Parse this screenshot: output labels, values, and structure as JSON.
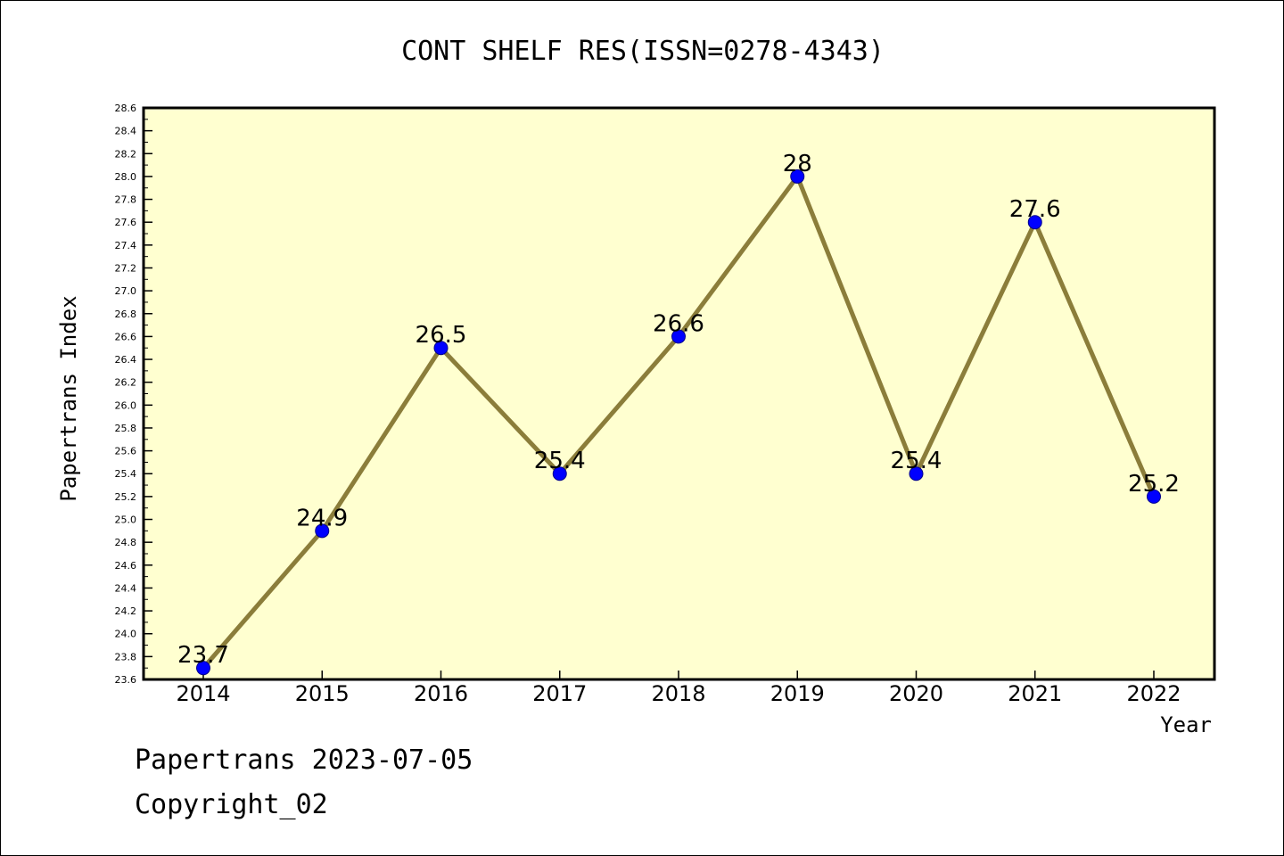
{
  "chart_data": {
    "type": "line",
    "title": "CONT SHELF RES(ISSN=0278-4343)",
    "xlabel": "Year",
    "ylabel": "Papertrans Index",
    "categories": [
      "2014",
      "2015",
      "2016",
      "2017",
      "2018",
      "2019",
      "2020",
      "2021",
      "2022"
    ],
    "series": [
      {
        "values": [
          23.7,
          24.9,
          26.5,
          25.4,
          26.6,
          28.0,
          25.4,
          27.6,
          25.2
        ]
      }
    ],
    "data_labels": [
      "23.7",
      "24.9",
      "26.5",
      "25.4",
      "26.6",
      "28",
      "25.4",
      "27.6",
      "25.2"
    ],
    "ylim": [
      23.6,
      28.6
    ],
    "yticks": [
      "23.6",
      "23.8",
      "24.0",
      "24.2",
      "24.4",
      "24.6",
      "24.8",
      "25.0",
      "25.2",
      "25.4",
      "25.6",
      "25.8",
      "26.0",
      "26.2",
      "26.4",
      "26.6",
      "26.8",
      "27.0",
      "27.2",
      "27.4",
      "27.6",
      "27.8",
      "28.0",
      "28.2",
      "28.4",
      "28.6"
    ],
    "grid": false,
    "legend": "none",
    "colors": {
      "plot_background": "#ffffd0",
      "line": "#8b7d3a",
      "marker": "#0000ff",
      "marker_edge": "#00008b"
    }
  },
  "footer": {
    "line1": "Papertrans 2023-07-05",
    "line2": "Copyright_02"
  }
}
